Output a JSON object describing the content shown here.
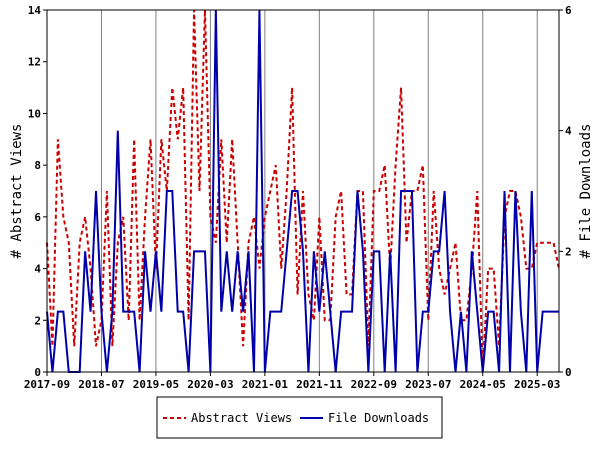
{
  "chart_data": {
    "type": "line",
    "xlabel": "",
    "ylabel": "# Abstract Views",
    "y2label": "# File Downloads",
    "ylim": [
      0,
      14
    ],
    "y2lim": [
      0,
      6
    ],
    "yticks": [
      "0",
      "2",
      "4",
      "6",
      "8",
      "10",
      "12",
      "14"
    ],
    "y2ticks": [
      "0",
      "2",
      "4",
      "6"
    ],
    "xticks": [
      "2017-09",
      "2018-07",
      "2019-05",
      "2020-03",
      "2021-01",
      "2021-11",
      "2022-09",
      "2023-07",
      "2024-05",
      "2025-03"
    ],
    "x": [
      "2017-09",
      "2017-10",
      "2017-11",
      "2017-12",
      "2018-01",
      "2018-02",
      "2018-03",
      "2018-04",
      "2018-05",
      "2018-06",
      "2018-07",
      "2018-08",
      "2018-09",
      "2018-10",
      "2018-11",
      "2018-12",
      "2019-01",
      "2019-02",
      "2019-03",
      "2019-04",
      "2019-05",
      "2019-06",
      "2019-07",
      "2019-08",
      "2019-09",
      "2019-10",
      "2019-11",
      "2019-12",
      "2020-01",
      "2020-02",
      "2020-03",
      "2020-04",
      "2020-05",
      "2020-06",
      "2020-07",
      "2020-08",
      "2020-09",
      "2020-10",
      "2020-11",
      "2020-12",
      "2021-01",
      "2021-02",
      "2021-03",
      "2021-04",
      "2021-05",
      "2021-06",
      "2021-07",
      "2021-08",
      "2021-09",
      "2021-10",
      "2021-11",
      "2021-12",
      "2022-01",
      "2022-02",
      "2022-03",
      "2022-04",
      "2022-05",
      "2022-06",
      "2022-07",
      "2022-08",
      "2022-09",
      "2022-10",
      "2022-11",
      "2022-12",
      "2023-01",
      "2023-02",
      "2023-03",
      "2023-04",
      "2023-05",
      "2023-06",
      "2023-07",
      "2023-08",
      "2023-09",
      "2023-10",
      "2023-11",
      "2023-12",
      "2024-01",
      "2024-02",
      "2024-03",
      "2024-04",
      "2024-05",
      "2024-06",
      "2024-07",
      "2024-08",
      "2024-09",
      "2024-10",
      "2024-11",
      "2024-12",
      "2025-01",
      "2025-02",
      "2025-03",
      "2025-04",
      "2025-05",
      "2025-06",
      "2025-07"
    ],
    "series": [
      {
        "name": "Abstract Views",
        "axis": "left",
        "color": "#cc0000",
        "style": "dashed",
        "values": [
          5,
          1,
          9,
          6,
          5,
          1,
          5,
          6,
          4,
          1,
          2,
          7,
          1,
          5,
          6,
          2,
          9,
          2,
          6,
          9,
          4,
          9,
          7,
          11,
          9,
          11,
          2,
          14,
          7,
          14,
          6,
          5,
          9,
          5,
          9,
          5,
          1,
          5,
          6,
          4,
          6,
          7,
          8,
          4,
          7,
          11,
          3,
          7,
          3,
          2,
          6,
          2,
          2,
          6,
          7,
          3,
          3,
          7,
          7,
          1,
          7,
          7,
          8,
          4,
          8,
          11,
          5,
          7,
          7,
          8,
          2,
          7,
          4,
          3,
          4,
          5,
          2,
          2,
          4,
          7,
          0,
          4,
          4,
          1,
          6,
          7,
          7,
          6,
          4,
          4,
          5,
          5,
          5,
          5,
          4
        ]
      },
      {
        "name": "File Downloads",
        "axis": "right",
        "color": "#0000aa",
        "style": "solid",
        "values": [
          1,
          0,
          1,
          1,
          0,
          0,
          0,
          2,
          1,
          3,
          1,
          0,
          1,
          4,
          1,
          1,
          1,
          0,
          2,
          1,
          2,
          1,
          3,
          3,
          1,
          1,
          0,
          2,
          2,
          2,
          0,
          6,
          1,
          2,
          1,
          2,
          1,
          2,
          0,
          6,
          0,
          1,
          1,
          1,
          2,
          3,
          3,
          2,
          0,
          2,
          1,
          2,
          1,
          0,
          1,
          1,
          1,
          3,
          2,
          0,
          2,
          2,
          0,
          2,
          0,
          3,
          3,
          3,
          0,
          1,
          1,
          2,
          2,
          3,
          1,
          0,
          1,
          0,
          2,
          1,
          0,
          1,
          1,
          0,
          3,
          0,
          3,
          1,
          0,
          3,
          0,
          1,
          1,
          1,
          1
        ]
      }
    ],
    "legend": {
      "position": "bottom-center"
    },
    "grid": true
  }
}
